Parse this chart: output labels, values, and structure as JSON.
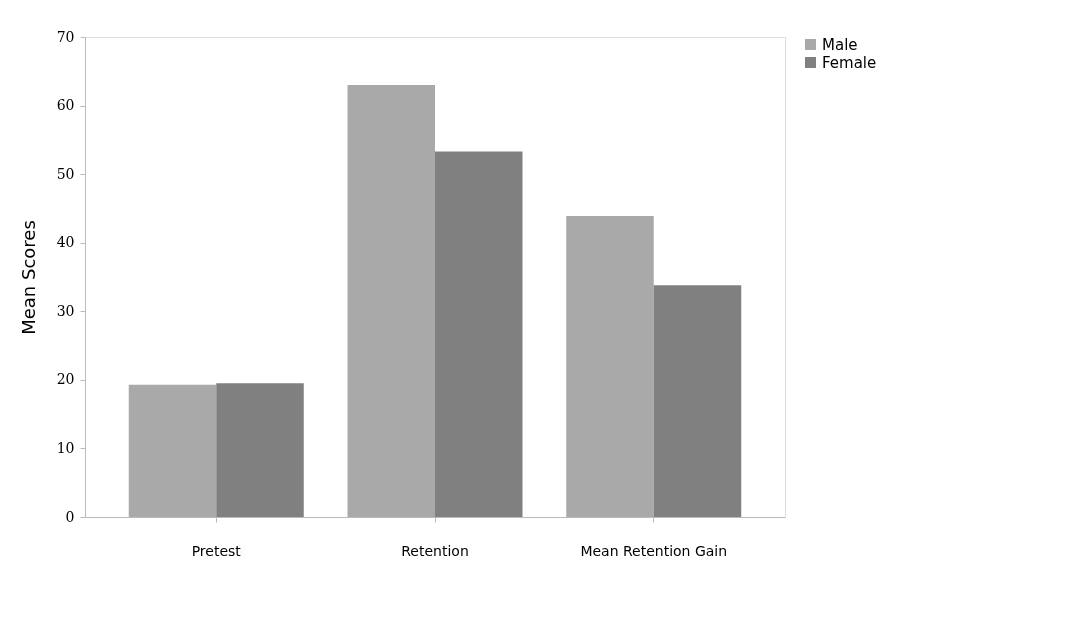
{
  "chart_data": {
    "type": "bar",
    "ylabel": "Mean Scores",
    "categories": [
      "Pretest",
      "Retention",
      "Mean Retention Gain"
    ],
    "series": [
      {
        "name": "Male",
        "color": "#a9a9a9",
        "values": [
          19.3,
          63.0,
          43.9
        ]
      },
      {
        "name": "Female",
        "color": "#808080",
        "values": [
          19.5,
          53.3,
          33.8
        ]
      }
    ],
    "ylim": [
      0,
      70
    ],
    "yticks": [
      0,
      10,
      20,
      30,
      40,
      50,
      60,
      70
    ],
    "grid": false,
    "legend": "right"
  }
}
